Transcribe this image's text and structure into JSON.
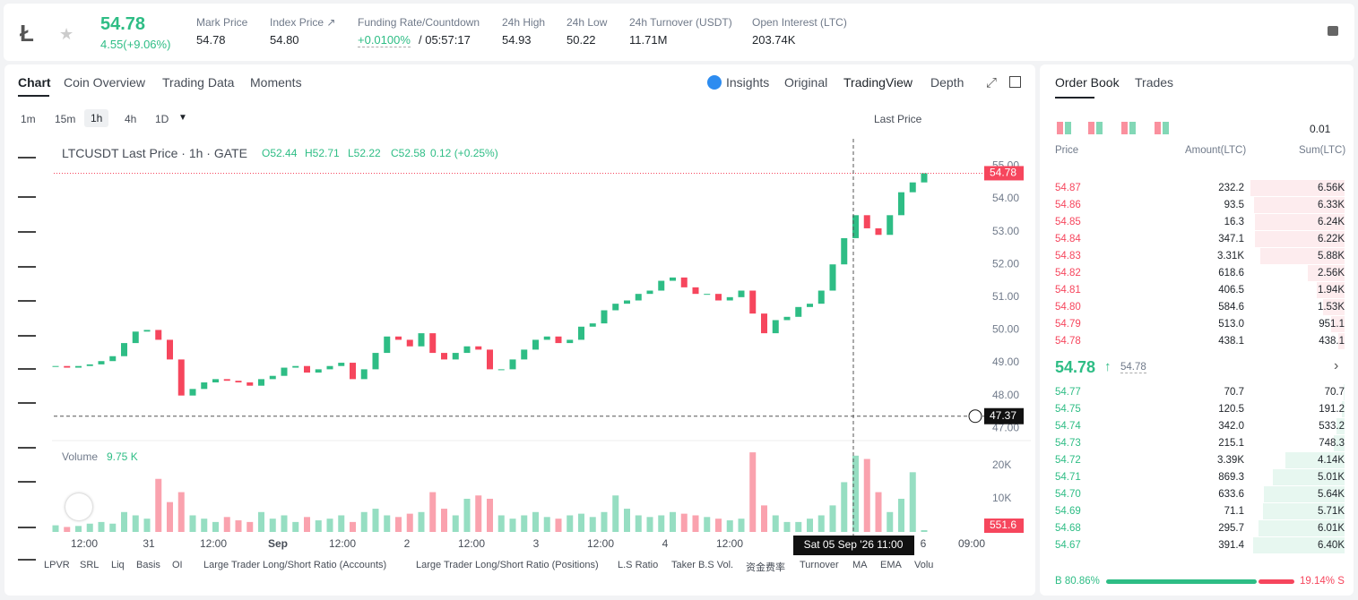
{
  "header": {
    "price": "54.78",
    "change": "4.55(+9.06%)",
    "stats": [
      {
        "label": "Mark Price",
        "value": "54.78"
      },
      {
        "label": "Index Price ↗",
        "value": "54.80"
      },
      {
        "label": "Funding Rate/Countdown",
        "value": "+0.0100%",
        "extra": "/ 05:57:17"
      },
      {
        "label": "24h High",
        "value": "54.93"
      },
      {
        "label": "24h Low",
        "value": "50.22"
      },
      {
        "label": "24h Turnover (USDT)",
        "value": "11.71M"
      },
      {
        "label": "Open Interest (LTC)",
        "value": "203.74K"
      }
    ]
  },
  "tabs": [
    "Chart",
    "Coin Overview",
    "Trading Data",
    "Moments"
  ],
  "views": [
    "Insights",
    "Original",
    "TradingView",
    "Depth"
  ],
  "intervals": [
    "1m",
    "15m",
    "1h",
    "4h",
    "1D"
  ],
  "price_type": "Last Price",
  "legend": {
    "symbol": "LTCUSDT Last Price · 1h · GATE",
    "ohlc": [
      "O52.44",
      "H52.71",
      "L52.22",
      "C52.58"
    ],
    "change": "0.12 (+0.25%)"
  },
  "volume_title": "Volume",
  "volume_value": "9.75 K",
  "indicators": [
    "LPVR",
    "SRL",
    "Liq",
    "Basis",
    "OI",
    "Large Trader Long/Short Ratio (Accounts)",
    "Large Trader Long/Short Ratio (Positions)",
    "L.S Ratio",
    "Taker B.S Vol.",
    "资金费率",
    "Turnover",
    "MA",
    "EMA",
    "Volu"
  ],
  "chart_data": {
    "type": "candlestick",
    "close": [
      48.9,
      48.85,
      48.9,
      48.95,
      49.05,
      49.2,
      49.6,
      49.95,
      50.0,
      49.7,
      49.1,
      48.0,
      48.2,
      48.4,
      48.5,
      48.45,
      48.4,
      48.3,
      48.5,
      48.6,
      48.85,
      48.9,
      48.7,
      48.8,
      48.9,
      49.0,
      48.5,
      48.8,
      49.3,
      49.8,
      49.7,
      49.5,
      49.9,
      49.3,
      49.1,
      49.3,
      49.5,
      49.4,
      48.8,
      48.8,
      49.1,
      49.4,
      49.7,
      49.8,
      49.6,
      49.7,
      50.1,
      50.2,
      50.6,
      50.8,
      50.9,
      51.1,
      51.2,
      51.5,
      51.6,
      51.3,
      51.1,
      51.1,
      50.9,
      51.0,
      51.2,
      50.5,
      49.9,
      50.3,
      50.4,
      50.7,
      50.8,
      51.2,
      52.0,
      52.8,
      53.5,
      53.1,
      52.9,
      53.5,
      54.2,
      54.5,
      54.78
    ],
    "ylim": [
      46.68,
      55.83
    ],
    "yticks": [
      {
        "value": 47,
        "label": "47.00"
      },
      {
        "value": 48,
        "label": "48.00"
      },
      {
        "value": 49,
        "label": "49.00"
      },
      {
        "value": 50,
        "label": "50.00"
      },
      {
        "value": 51,
        "label": "51.00"
      },
      {
        "value": 52,
        "label": "52.00"
      },
      {
        "value": 53,
        "label": "53.00"
      },
      {
        "value": 54,
        "label": "54.00"
      },
      {
        "value": 55,
        "label": "55.00"
      }
    ],
    "last_price": {
      "value": 54.78,
      "label": "54.78"
    },
    "cursor_price": {
      "value": 47.37,
      "label": "47.37"
    },
    "up_color": "#2ebd85",
    "down_color": "#f6465d",
    "volume": {
      "values": [
        2000,
        1500,
        1800,
        2500,
        3000,
        2500,
        6000,
        5000,
        4000,
        16000,
        9000,
        12000,
        5000,
        4000,
        3000,
        4500,
        3500,
        3000,
        6000,
        4000,
        5000,
        3000,
        4500,
        3500,
        4000,
        5000,
        3000,
        6000,
        7000,
        5000,
        4500,
        5500,
        6000,
        12000,
        7000,
        5000,
        10000,
        11000,
        10000,
        5000,
        4000,
        5000,
        6000,
        4500,
        4000,
        5000,
        5500,
        4500,
        6000,
        11000,
        7000,
        5000,
        4500,
        5000,
        6000,
        5500,
        5000,
        4500,
        4000,
        3500,
        4000,
        24000,
        8000,
        5000,
        3000,
        3000,
        4000,
        5000,
        8000,
        15000,
        23000,
        22000,
        12000,
        6000,
        10000,
        18000,
        551.6
      ],
      "last_label": "551.6",
      "ylim": [
        0,
        27000
      ],
      "yticks": [
        {
          "value": 10000,
          "label": "10K"
        },
        {
          "value": 20000,
          "label": "20K"
        }
      ]
    },
    "xticks": [
      "12:00",
      "31",
      "12:00",
      "Sep",
      "12:00",
      "2",
      "12:00",
      "3",
      "12:00",
      "4",
      "12:00",
      "6",
      "09:00"
    ],
    "crosshair": "Sat 05 Sep '26   11:00"
  },
  "order_book": {
    "tabs": [
      "Order Book",
      "Trades"
    ],
    "precision": "0.01",
    "columns": [
      "Price",
      "Amount(LTC)",
      "Sum(LTC)"
    ],
    "asks": [
      {
        "price": "54.87",
        "amount": "232.2",
        "sum": {
          "value": 6560,
          "label": "6.56K"
        }
      },
      {
        "price": "54.86",
        "amount": "93.5",
        "sum": {
          "value": 6330,
          "label": "6.33K"
        }
      },
      {
        "price": "54.85",
        "amount": "16.3",
        "sum": {
          "value": 6240,
          "label": "6.24K"
        }
      },
      {
        "price": "54.84",
        "amount": "347.1",
        "sum": {
          "value": 6220,
          "label": "6.22K"
        }
      },
      {
        "price": "54.83",
        "amount": "3.31K",
        "sum": {
          "value": 5880,
          "label": "5.88K"
        }
      },
      {
        "price": "54.82",
        "amount": "618.6",
        "sum": {
          "value": 2560,
          "label": "2.56K"
        }
      },
      {
        "price": "54.81",
        "amount": "406.5",
        "sum": {
          "value": 1940,
          "label": "1.94K"
        }
      },
      {
        "price": "54.80",
        "amount": "584.6",
        "sum": {
          "value": 1530,
          "label": "1.53K"
        }
      },
      {
        "price": "54.79",
        "amount": "513.0",
        "sum": {
          "value": 951.1,
          "label": "951.1"
        }
      },
      {
        "price": "54.78",
        "amount": "438.1",
        "sum": {
          "value": 438.1,
          "label": "438.1"
        }
      }
    ],
    "mid": "54.78",
    "mid_arrow": "↑",
    "mark": "54.78",
    "bids": [
      {
        "price": "54.77",
        "amount": "70.7",
        "sum": {
          "value": 70.7,
          "label": "70.7"
        }
      },
      {
        "price": "54.75",
        "amount": "120.5",
        "sum": {
          "value": 191.2,
          "label": "191.2"
        }
      },
      {
        "price": "54.74",
        "amount": "342.0",
        "sum": {
          "value": 533.2,
          "label": "533.2"
        }
      },
      {
        "price": "54.73",
        "amount": "215.1",
        "sum": {
          "value": 748.3,
          "label": "748.3"
        }
      },
      {
        "price": "54.72",
        "amount": "3.39K",
        "sum": {
          "value": 4140,
          "label": "4.14K"
        }
      },
      {
        "price": "54.71",
        "amount": "869.3",
        "sum": {
          "value": 5010,
          "label": "5.01K"
        }
      },
      {
        "price": "54.70",
        "amount": "633.6",
        "sum": {
          "value": 5640,
          "label": "5.64K"
        }
      },
      {
        "price": "54.69",
        "amount": "71.1",
        "sum": {
          "value": 5710,
          "label": "5.71K"
        }
      },
      {
        "price": "54.68",
        "amount": "295.7",
        "sum": {
          "value": 6010,
          "label": "6.01K"
        }
      },
      {
        "price": "54.67",
        "amount": "391.4",
        "sum": {
          "value": 6400,
          "label": "6.40K"
        }
      }
    ],
    "buy": {
      "value": 80.86,
      "label": "B 80.86%"
    },
    "sell": {
      "value": 19.14,
      "label": "19.14% S"
    }
  }
}
